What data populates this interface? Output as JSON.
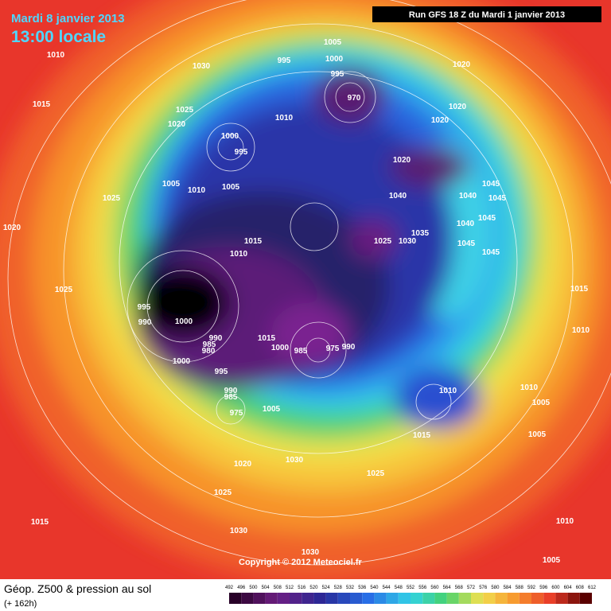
{
  "header": {
    "date": "Mardi 8 janvier 2013",
    "time": "13:00 locale",
    "run": "Run GFS 18 Z du Mardi 1 janvier 2013"
  },
  "copyright": "Copyright © 2012 Meteociel.fr",
  "legend": {
    "title": "Géop. Z500 & pression au sol",
    "lead": "(+ 162h)",
    "scale": [
      492,
      496,
      500,
      504,
      508,
      512,
      516,
      520,
      524,
      528,
      532,
      536,
      540,
      544,
      548,
      552,
      556,
      560,
      564,
      568,
      572,
      576,
      580,
      584,
      588,
      592,
      596,
      600,
      604,
      608,
      612
    ]
  },
  "isobar_labels": [
    1010,
    1015,
    1030,
    1025,
    1020,
    995,
    1005,
    1000,
    995,
    970,
    1020,
    1020,
    1020,
    1010,
    1000,
    995,
    1005,
    1010,
    1005,
    1025,
    1020,
    1040,
    1040,
    1045,
    1045,
    1045,
    1040,
    1035,
    1025,
    1030,
    1045,
    1045,
    1015,
    1010,
    1020,
    1025,
    995,
    990,
    1000,
    990,
    985,
    980,
    1000,
    995,
    1015,
    1000,
    985,
    975,
    990,
    1010,
    1010,
    1005,
    1010,
    1015,
    990,
    985,
    975,
    1005,
    1015,
    1005,
    1030,
    1020,
    1025,
    1025,
    1015,
    1030,
    1010,
    1030,
    1005
  ]
}
